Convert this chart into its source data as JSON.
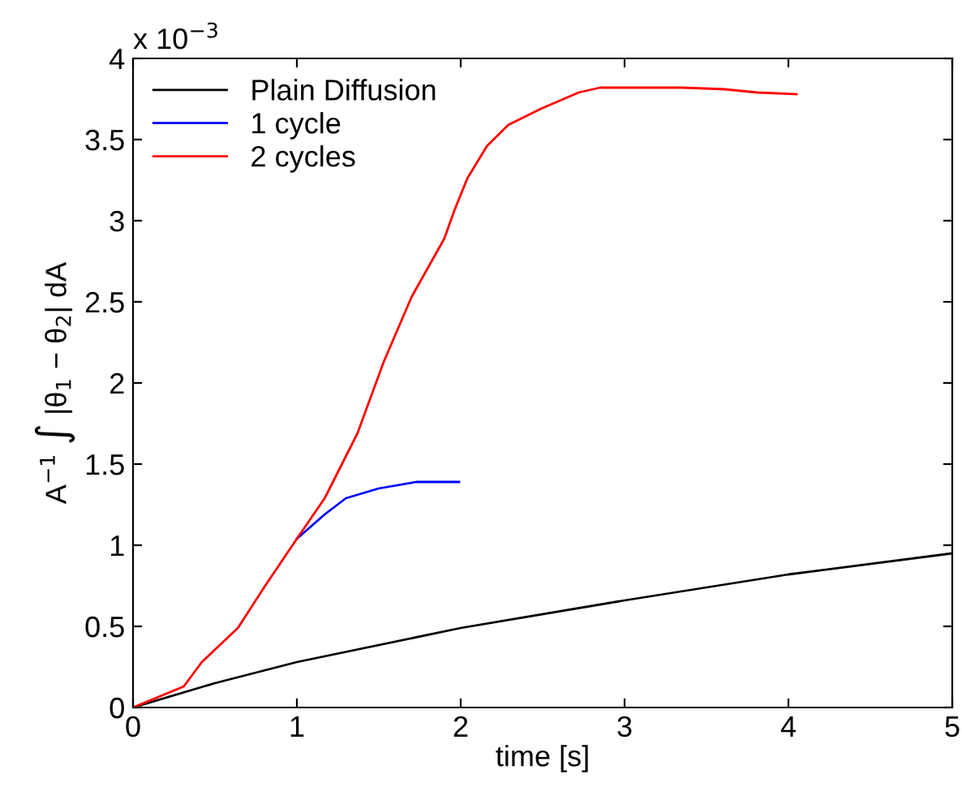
{
  "chart_data": {
    "type": "line",
    "xlabel": "time [s]",
    "ylabel": "A$^{−1}$ ∫ |θ$_{1}$ − θ$_{2}$| dA",
    "annotations": [
      "x 10$^{−3}$"
    ],
    "xlim": [
      0,
      5
    ],
    "xticks": [
      0,
      1,
      2,
      3,
      4,
      5
    ],
    "ylim": [
      0,
      4
    ],
    "yticks": [
      0,
      0.5,
      1,
      1.5,
      2,
      2.5,
      3,
      3.5,
      4
    ],
    "grid": false,
    "legend": "top left",
    "marker": "none",
    "line_style": "solid",
    "series": [
      {
        "name": "Plain Diffusion",
        "color": "#000000",
        "x": [
          0,
          0.5,
          1,
          2,
          3,
          4,
          5
        ],
        "values": [
          0,
          0.15,
          0.28,
          0.49,
          0.66,
          0.82,
          0.95
        ]
      },
      {
        "name": "1 cycle",
        "color": "#0000ff",
        "x": [
          1.0,
          1.17,
          1.3,
          1.5,
          1.73,
          1.99
        ],
        "values": [
          1.04,
          1.19,
          1.29,
          1.35,
          1.39,
          1.39
        ]
      },
      {
        "name": "2 cycles",
        "color": "#ff0000",
        "x": [
          0,
          0.31,
          0.42,
          0.64,
          0.8,
          1.0,
          1.17,
          1.37,
          1.53,
          1.7,
          1.9,
          1.96,
          2.04,
          2.16,
          2.29,
          2.49,
          2.72,
          2.85,
          2.95,
          3.35,
          3.61,
          3.81,
          4.05
        ],
        "values": [
          0,
          0.13,
          0.28,
          0.49,
          0.74,
          1.04,
          1.29,
          1.69,
          2.13,
          2.53,
          2.89,
          3.06,
          3.26,
          3.46,
          3.59,
          3.69,
          3.79,
          3.82,
          3.82,
          3.82,
          3.81,
          3.79,
          3.78
        ]
      }
    ]
  }
}
